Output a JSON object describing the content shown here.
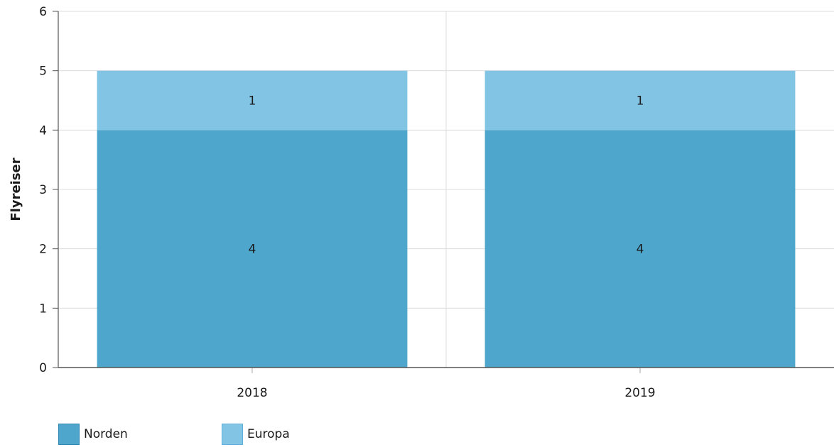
{
  "chart_data": {
    "type": "bar",
    "stacked": true,
    "categories": [
      "2018",
      "2019"
    ],
    "series": [
      {
        "name": "Norden",
        "values": [
          4,
          4
        ],
        "color": "#4fa6cd"
      },
      {
        "name": "Europa",
        "values": [
          1,
          1
        ],
        "color": "#82c4e4"
      }
    ],
    "xlabel": "",
    "ylabel": "Flyreiser",
    "ylim": [
      0,
      6
    ],
    "yticks": [
      0,
      1,
      2,
      3,
      4,
      5,
      6
    ],
    "grid": true,
    "legend_position": "bottom-left",
    "data_labels": true
  }
}
